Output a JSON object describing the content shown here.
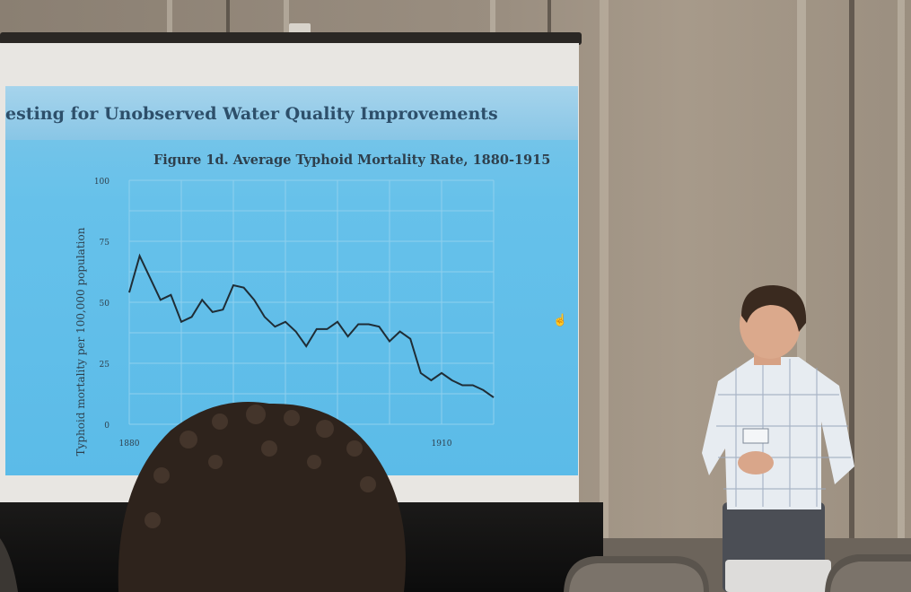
{
  "slide": {
    "title": "esting for Unobserved Water Quality Improvements",
    "figure_title": "Figure 1d. Average Typhoid Mortality Rate, 1880-1915"
  },
  "chart_data": {
    "type": "line",
    "title": "Figure 1d. Average Typhoid Mortality Rate, 1880-1915",
    "xlabel": "",
    "ylabel": "Typhoid mortality per 100,000 population",
    "ylim": [
      0,
      100
    ],
    "xlim": [
      1880,
      1915
    ],
    "x_ticks": [
      "1880",
      "1910"
    ],
    "y_ticks": [
      "0",
      "25",
      "50",
      "75",
      "100"
    ],
    "grid": true,
    "series": [
      {
        "x": [
          1880,
          1881,
          1882,
          1883,
          1884,
          1885,
          1886,
          1887,
          1888,
          1889,
          1890,
          1891,
          1892,
          1893,
          1894,
          1895,
          1896,
          1897,
          1898,
          1899,
          1900,
          1901,
          1902,
          1903,
          1904,
          1905,
          1906,
          1907,
          1908,
          1909,
          1910,
          1911,
          1912,
          1913,
          1914,
          1915
        ],
        "values": [
          54,
          69,
          60,
          51,
          53,
          42,
          44,
          51,
          46,
          47,
          57,
          56,
          51,
          44,
          40,
          42,
          38,
          32,
          39,
          39,
          42,
          36,
          41,
          41,
          40,
          34,
          38,
          35,
          21,
          18,
          21,
          18,
          16,
          16,
          14,
          11
        ]
      }
    ]
  }
}
